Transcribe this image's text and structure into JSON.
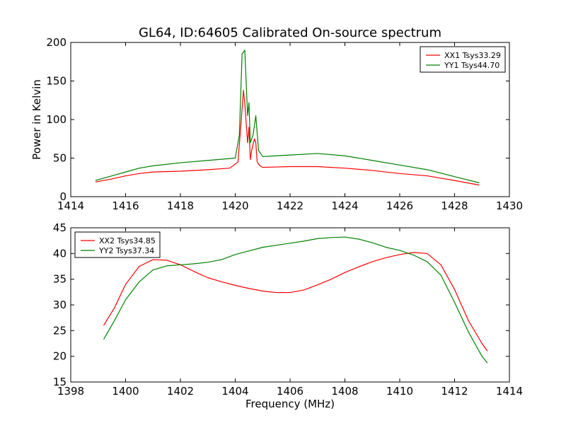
{
  "chart_data": [
    {
      "type": "line",
      "title": "GL64, ID:64605 Calibrated On-source spectrum",
      "xlabel": "",
      "ylabel": "Power in Kelvin",
      "xlim": [
        1414,
        1430
      ],
      "ylim": [
        0,
        200
      ],
      "xticks": [
        1414,
        1416,
        1418,
        1420,
        1422,
        1424,
        1426,
        1428,
        1430
      ],
      "yticks": [
        0,
        50,
        100,
        150,
        200
      ],
      "grid": false,
      "legend_position": "top-right",
      "series": [
        {
          "name": "XX1 Tsys33.29",
          "color": "#ff0000",
          "x": [
            1414.9,
            1415.5,
            1416.0,
            1416.5,
            1417.0,
            1418.0,
            1419.0,
            1419.8,
            1420.1,
            1420.2,
            1420.3,
            1420.35,
            1420.45,
            1420.5,
            1420.55,
            1420.6,
            1420.7,
            1420.75,
            1420.8,
            1420.9,
            1421.0,
            1422.0,
            1423.0,
            1424.0,
            1425.0,
            1426.0,
            1427.0,
            1428.0,
            1428.9
          ],
          "y": [
            19,
            23,
            27,
            30,
            32,
            33,
            35,
            37,
            45,
            90,
            138,
            120,
            70,
            90,
            48,
            60,
            75,
            70,
            45,
            40,
            38,
            39,
            39,
            37,
            34,
            30,
            27,
            21,
            15
          ]
        },
        {
          "name": "YY1 Tsys44.70",
          "color": "#008000",
          "x": [
            1414.9,
            1415.5,
            1416.0,
            1416.5,
            1417.0,
            1418.0,
            1419.0,
            1420.0,
            1420.15,
            1420.25,
            1420.35,
            1420.45,
            1420.5,
            1420.55,
            1420.65,
            1420.75,
            1420.85,
            1421.0,
            1422.0,
            1423.0,
            1424.0,
            1425.0,
            1426.0,
            1427.0,
            1428.0,
            1428.9
          ],
          "y": [
            21,
            27,
            32,
            37,
            40,
            44,
            47,
            50,
            80,
            185,
            190,
            105,
            122,
            70,
            80,
            105,
            60,
            52,
            54,
            56,
            53,
            47,
            41,
            35,
            26,
            18
          ]
        }
      ]
    },
    {
      "type": "line",
      "title": "",
      "xlabel": "Frequency (MHz)",
      "ylabel": "",
      "xlim": [
        1398,
        1414
      ],
      "ylim": [
        15,
        45
      ],
      "xticks": [
        1398,
        1400,
        1402,
        1404,
        1406,
        1408,
        1410,
        1412,
        1414
      ],
      "yticks": [
        15,
        20,
        25,
        30,
        35,
        40,
        45
      ],
      "grid": false,
      "legend_position": "top-left",
      "series": [
        {
          "name": "XX2 Tsys34.85",
          "color": "#ff0000",
          "x": [
            1399.2,
            1399.6,
            1400.0,
            1400.5,
            1401.0,
            1401.5,
            1402.0,
            1402.5,
            1403.0,
            1403.5,
            1404.0,
            1404.5,
            1405.0,
            1405.5,
            1406.0,
            1406.5,
            1407.0,
            1407.5,
            1408.0,
            1408.5,
            1409.0,
            1409.5,
            1410.0,
            1410.5,
            1411.0,
            1411.5,
            1412.0,
            1412.5,
            1413.0,
            1413.2
          ],
          "y": [
            26,
            29.5,
            34,
            37.5,
            38.8,
            38.7,
            37.8,
            36.5,
            35.3,
            34.5,
            33.8,
            33.2,
            32.7,
            32.4,
            32.4,
            32.9,
            33.9,
            35.0,
            36.3,
            37.4,
            38.4,
            39.2,
            39.8,
            40.2,
            40.0,
            37.8,
            33.0,
            27.0,
            22.5,
            21.0
          ]
        },
        {
          "name": "YY2 Tsys37.34",
          "color": "#008000",
          "x": [
            1399.2,
            1399.6,
            1400.0,
            1400.5,
            1401.0,
            1401.5,
            1402.0,
            1402.5,
            1403.0,
            1403.5,
            1404.0,
            1404.5,
            1405.0,
            1405.5,
            1406.0,
            1406.5,
            1407.0,
            1407.5,
            1408.0,
            1408.5,
            1409.0,
            1409.5,
            1410.0,
            1410.5,
            1411.0,
            1411.5,
            1412.0,
            1412.5,
            1413.0,
            1413.2
          ],
          "y": [
            23.3,
            27,
            31,
            34.5,
            36.8,
            37.6,
            37.8,
            38.0,
            38.3,
            38.8,
            39.8,
            40.5,
            41.2,
            41.6,
            42.0,
            42.4,
            42.9,
            43.1,
            43.2,
            42.8,
            42.1,
            41.2,
            40.6,
            39.7,
            38.4,
            35.8,
            30.5,
            24.8,
            20.0,
            18.7
          ]
        }
      ]
    }
  ]
}
